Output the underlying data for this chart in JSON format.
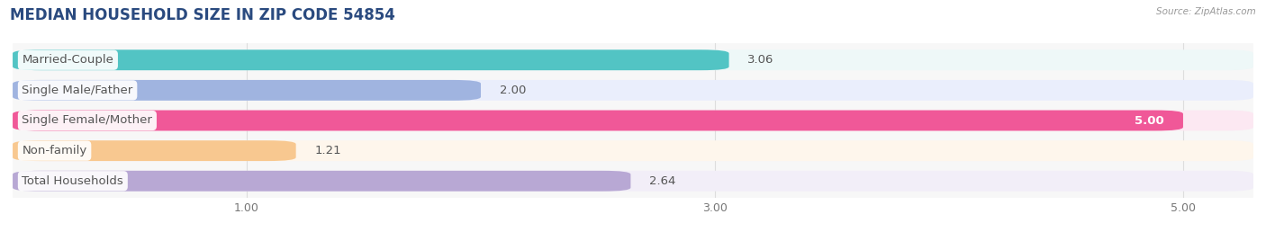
{
  "title": "MEDIAN HOUSEHOLD SIZE IN ZIP CODE 54854",
  "source": "Source: ZipAtlas.com",
  "categories": [
    "Married-Couple",
    "Single Male/Father",
    "Single Female/Mother",
    "Non-family",
    "Total Households"
  ],
  "values": [
    3.06,
    2.0,
    5.0,
    1.21,
    2.64
  ],
  "bar_colors": [
    "#52c4c4",
    "#a0b4e0",
    "#f05898",
    "#f8c890",
    "#b8a8d4"
  ],
  "bar_bg_colors": [
    "#eef8f8",
    "#eaeefc",
    "#fce8f2",
    "#fef6ec",
    "#f2eef8"
  ],
  "label_bg_color": "#ffffff",
  "xlim": [
    0,
    5.3
  ],
  "xticks": [
    1.0,
    3.0,
    5.0
  ],
  "label_fontsize": 9.5,
  "value_fontsize": 9.5,
  "title_fontsize": 12,
  "background_color": "#ffffff",
  "plot_bg_color": "#f7f7f7",
  "grid_color": "#dddddd",
  "text_color": "#555555",
  "title_color": "#2a4a7f"
}
